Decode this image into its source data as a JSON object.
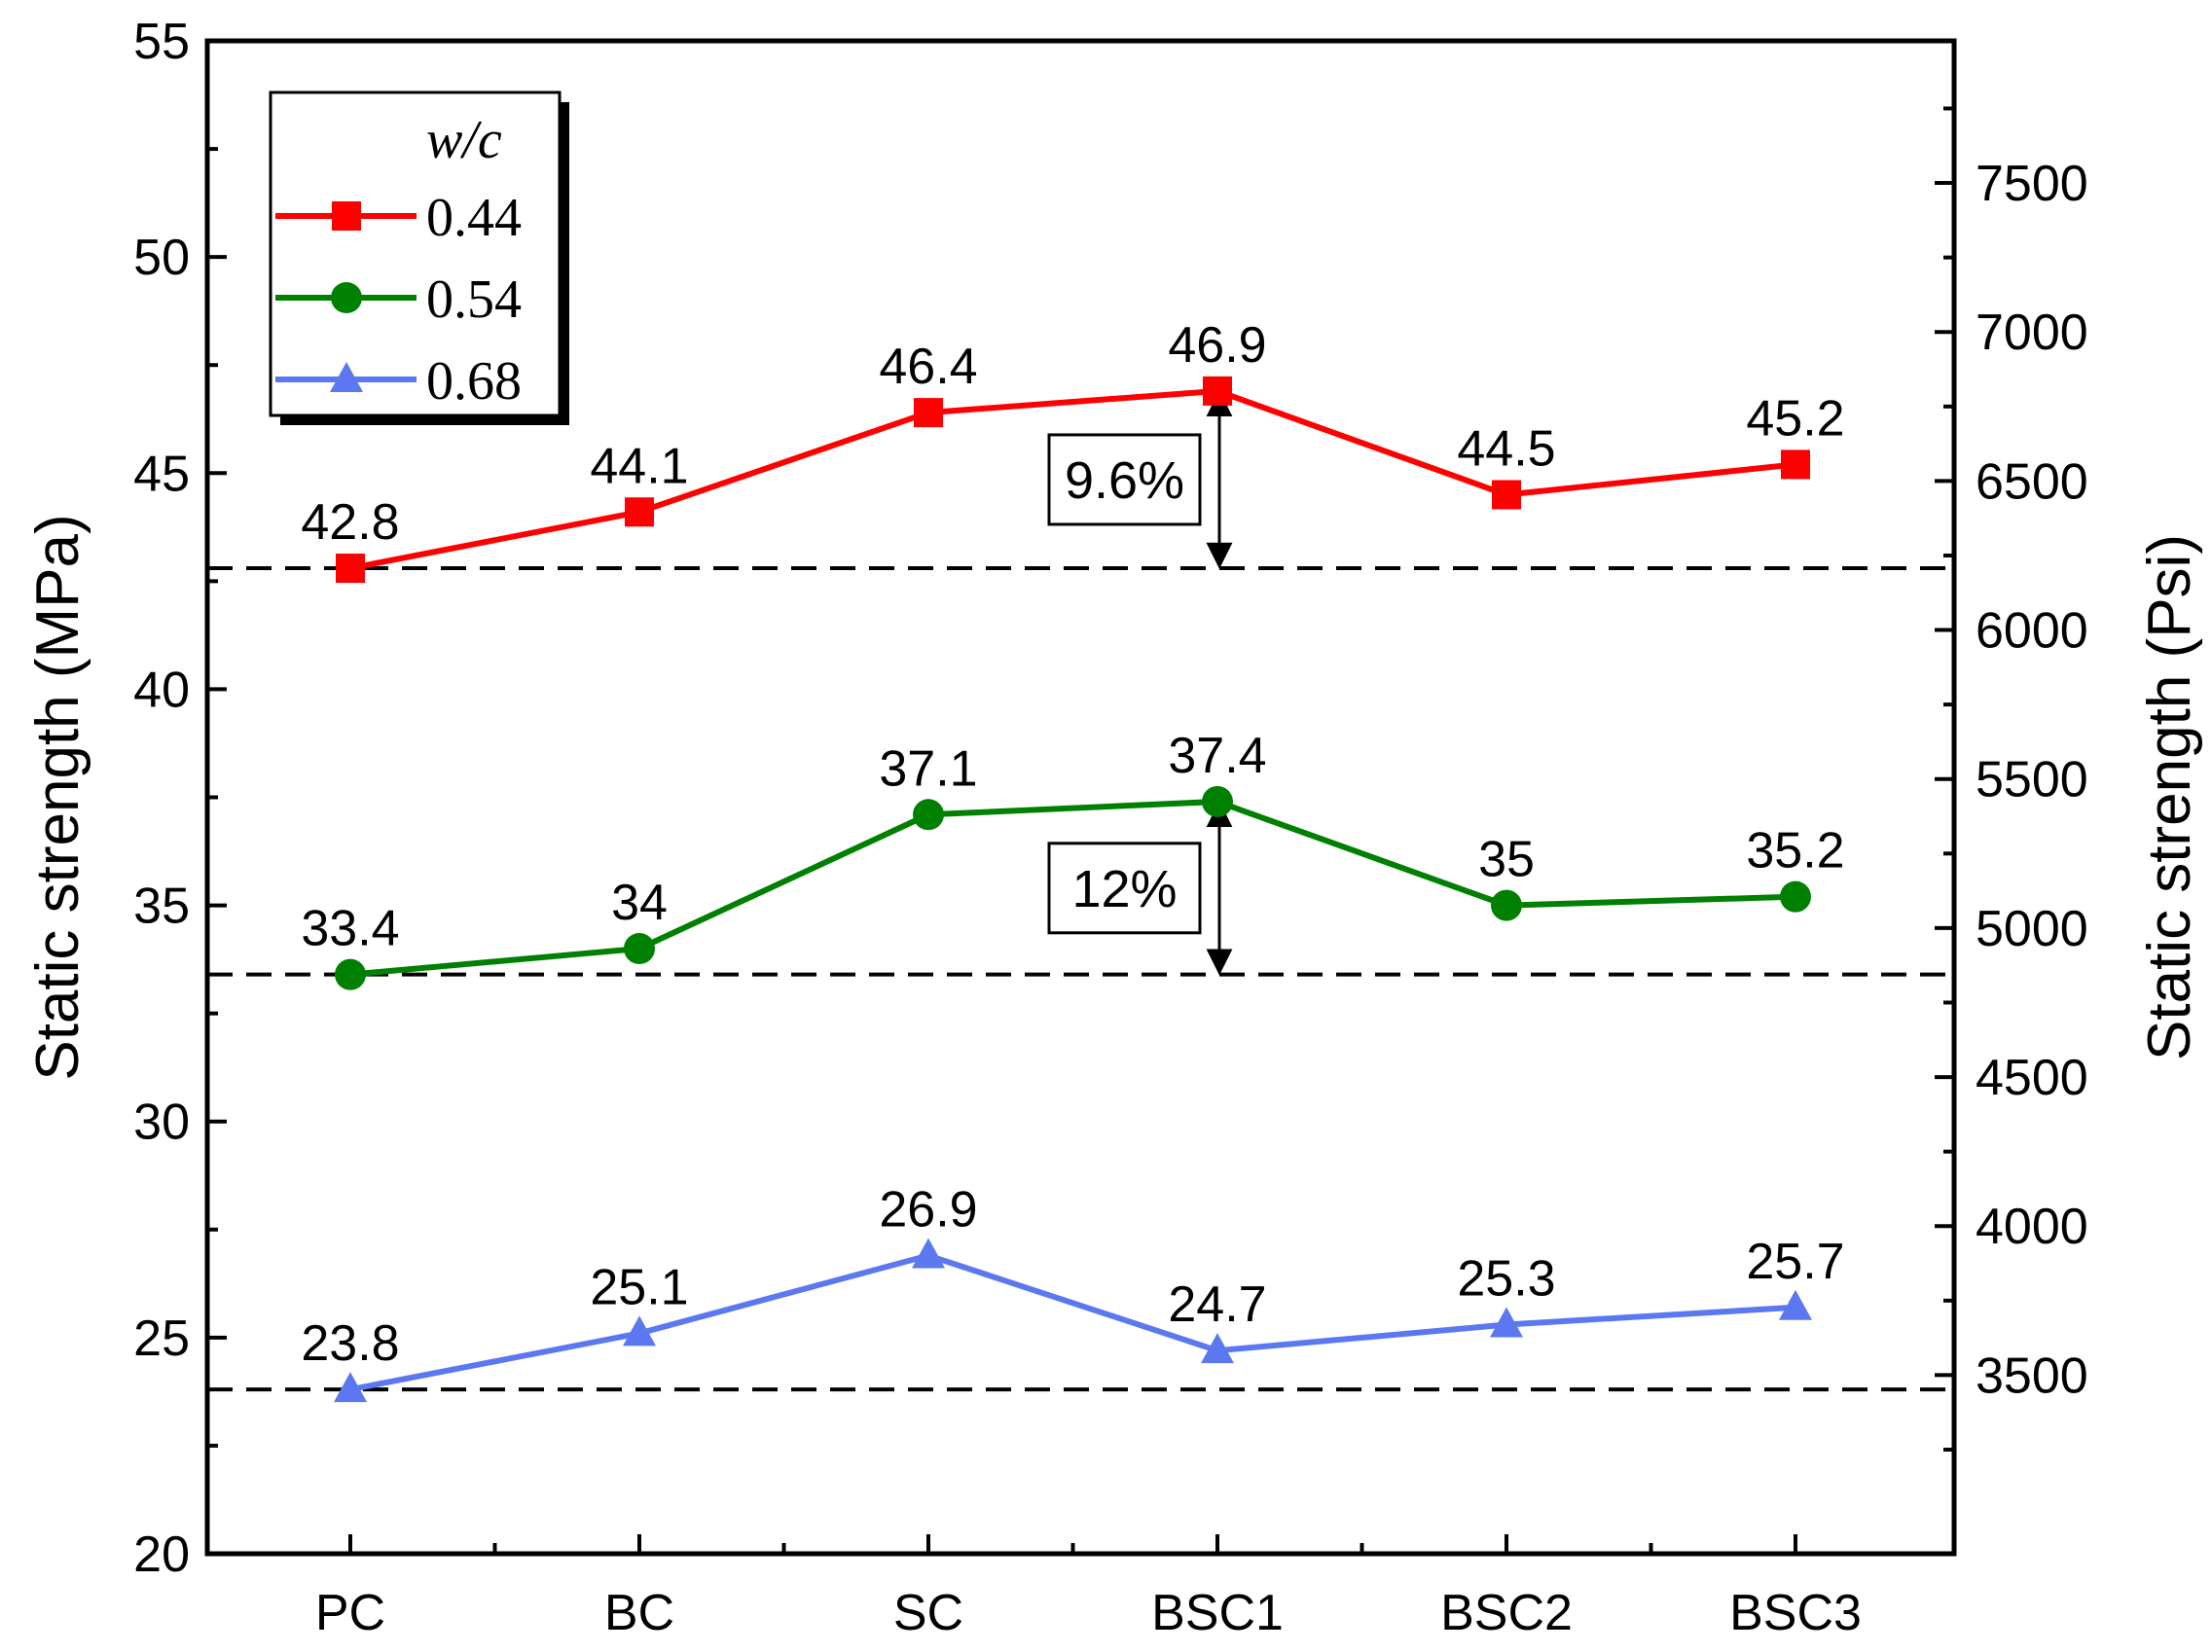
{
  "chart_data": {
    "type": "line",
    "categories": [
      "PC",
      "BC",
      "SC",
      "BSC1",
      "BSC2",
      "BSC3"
    ],
    "series": [
      {
        "name": "0.44",
        "marker": "square",
        "color": "#ff0000",
        "values": [
          42.8,
          44.1,
          46.4,
          46.9,
          44.5,
          45.2
        ],
        "labels": [
          "42.8",
          "44.1",
          "46.4",
          "46.9",
          "44.5",
          "45.2"
        ]
      },
      {
        "name": "0.54",
        "marker": "circle",
        "color": "#008000",
        "values": [
          33.4,
          34,
          37.1,
          37.4,
          35,
          35.2
        ],
        "labels": [
          "33.4",
          "34",
          "37.1",
          "37.4",
          "35",
          "35.2"
        ]
      },
      {
        "name": "0.68",
        "marker": "triangle",
        "color": "#5b78f0",
        "values": [
          23.8,
          25.1,
          26.9,
          24.7,
          25.3,
          25.7
        ],
        "labels": [
          "23.8",
          "25.1",
          "26.9",
          "24.7",
          "25.3",
          "25.7"
        ]
      }
    ],
    "ylabel": "Static strength (MPa)",
    "ylim": [
      20,
      55
    ],
    "yticks": [
      20,
      25,
      30,
      35,
      40,
      45,
      50,
      55
    ],
    "y2label": "Static strength (Psi)",
    "y2ticks": [
      3500,
      4000,
      4500,
      5000,
      5500,
      6000,
      6500,
      7000,
      7500
    ],
    "mpa_per_psi": 0.006895,
    "legend": {
      "title": "w/c",
      "placement": "top-left"
    },
    "reference_lines": [
      42.8,
      33.4,
      23.8
    ],
    "annotations": [
      {
        "text": "9.6%",
        "category": "BSC1",
        "from": 42.8,
        "to": 46.9
      },
      {
        "text": "12%",
        "category": "BSC1",
        "from": 33.4,
        "to": 37.4
      }
    ],
    "grid": false
  }
}
